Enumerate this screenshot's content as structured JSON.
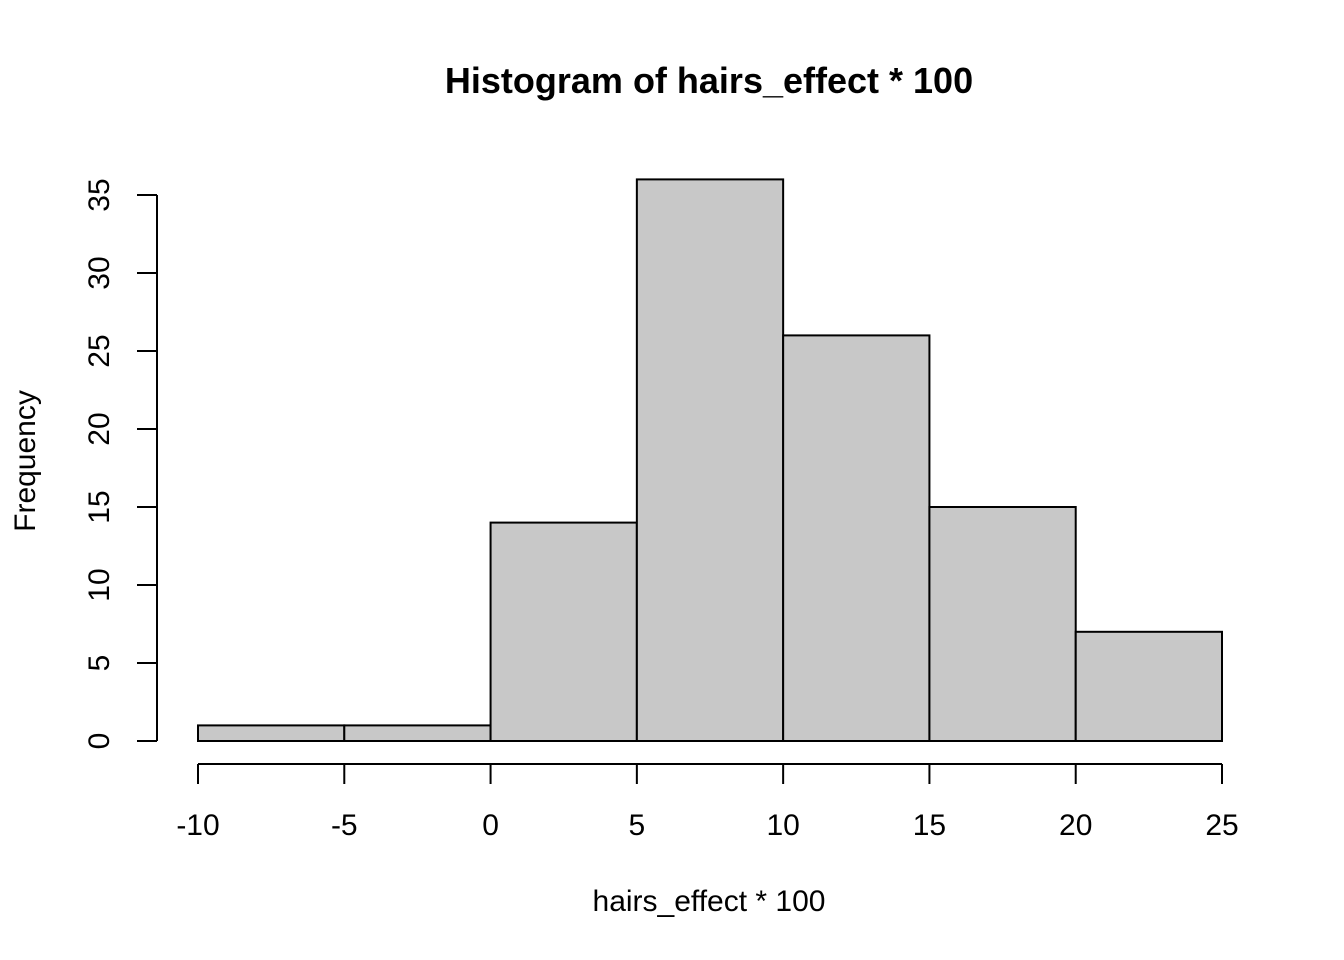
{
  "chart_data": {
    "type": "bar",
    "title": "Histogram of hairs_effect * 100",
    "xlabel": "hairs_effect * 100",
    "ylabel": "Frequency",
    "bins": [
      {
        "start": -10,
        "end": -5,
        "count": 1
      },
      {
        "start": -5,
        "end": 0,
        "count": 1
      },
      {
        "start": 0,
        "end": 5,
        "count": 14
      },
      {
        "start": 5,
        "end": 10,
        "count": 36
      },
      {
        "start": 10,
        "end": 15,
        "count": 26
      },
      {
        "start": 15,
        "end": 20,
        "count": 15
      },
      {
        "start": 20,
        "end": 25,
        "count": 7
      }
    ],
    "xlim": [
      -10,
      25
    ],
    "ylim": [
      0,
      35
    ],
    "x_ticks": [
      "-10",
      "-5",
      "0",
      "5",
      "10",
      "15",
      "20",
      "25"
    ],
    "y_ticks": [
      "0",
      "5",
      "10",
      "15",
      "20",
      "25",
      "30",
      "35"
    ],
    "grid": false,
    "bar_color": "#c8c8c8",
    "edge_color": "#000000"
  }
}
